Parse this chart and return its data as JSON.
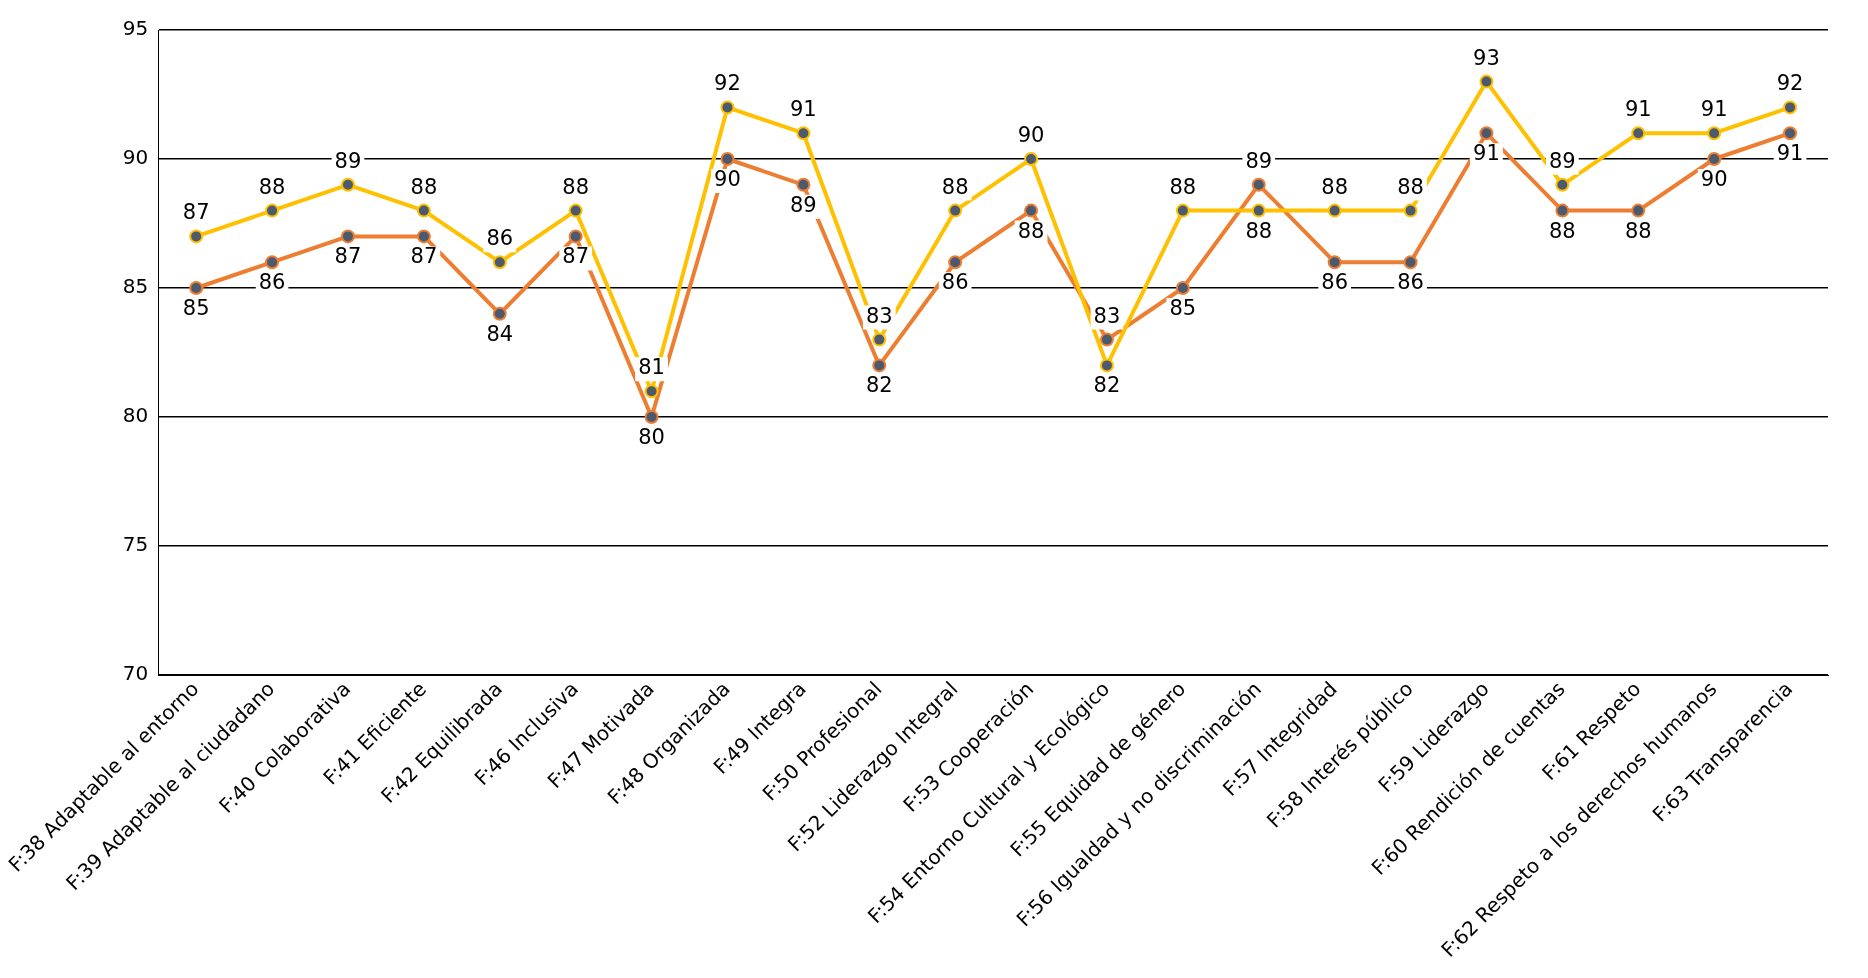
{
  "chart_data": {
    "type": "line",
    "categories": [
      "F:38 Adaptable al entorno",
      "F:39 Adaptable al ciudadano",
      "F:40 Colaborativa",
      "F:41 Eficiente",
      "F:42 Equilibrada",
      "F:46 Inclusiva",
      "F:47 Motivada",
      "F:48 Organizada",
      "F:49 Integra",
      "F:50 Profesional",
      "F:52 Liderazgo Integral",
      "F:53 Cooperación",
      "F:54 Entorno Cultural y Ecológico",
      "F:55 Equidad de género",
      "F:56 Igualdad y no discriminación",
      "F:57 Integridad",
      "F:58 Interés público",
      "F:59 Liderazgo",
      "F:60 Rendición de cuentas",
      "F:61 Respeto",
      "F:62 Respeto a los derechos humanos",
      "F:63 Transparencia"
    ],
    "series": [
      {
        "color": "#ffc000",
        "values": [
          87,
          88,
          89,
          88,
          86,
          88,
          81,
          92,
          91,
          83,
          88,
          90,
          82,
          88,
          88,
          88,
          88,
          93,
          89,
          91,
          91,
          92
        ]
      },
      {
        "color": "#ed7d31",
        "values": [
          85,
          86,
          87,
          87,
          84,
          87,
          80,
          90,
          89,
          82,
          86,
          88,
          83,
          85,
          89,
          86,
          86,
          91,
          88,
          88,
          90,
          91
        ]
      }
    ],
    "ylim": [
      70,
      95
    ],
    "yticks": [
      70,
      75,
      80,
      85,
      90,
      95
    ],
    "grid": "y",
    "legend": false,
    "marker": "circle",
    "line_style": "solid",
    "data_labels": true
  }
}
